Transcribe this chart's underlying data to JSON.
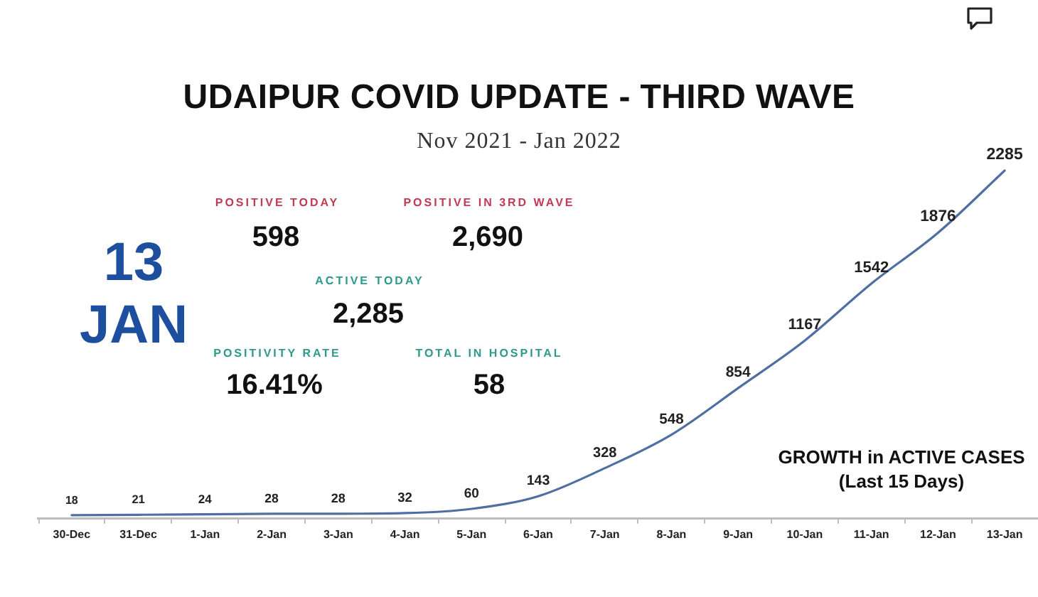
{
  "chart_data": {
    "type": "line",
    "title": "UDAIPUR COVID UPDATE - THIRD WAVE",
    "subtitle": "Nov 2021 - Jan 2022",
    "categories": [
      "30-Dec",
      "31-Dec",
      "1-Jan",
      "2-Jan",
      "3-Jan",
      "4-Jan",
      "5-Jan",
      "6-Jan",
      "7-Jan",
      "8-Jan",
      "9-Jan",
      "10-Jan",
      "11-Jan",
      "12-Jan",
      "13-Jan"
    ],
    "values": [
      18,
      21,
      24,
      28,
      28,
      32,
      60,
      143,
      328,
      548,
      854,
      1167,
      1542,
      1876,
      2285
    ],
    "color": "#4f6fa3",
    "data_labels": true,
    "marker": "none",
    "line_style": "solid",
    "grid": false,
    "legend": false,
    "tick_labels": "x",
    "annotations": [
      "13 JAN",
      "POSITIVE TODAY",
      "598",
      "POSITIVE IN 3RD WAVE",
      "2,690",
      "ACTIVE TODAY",
      "2,285",
      "POSITIVITY RATE",
      "16.41%",
      "TOTAL IN HOSPITAL",
      "58",
      "GROWTH in ACTIVE CASES (Last 15 Days)"
    ]
  }
}
